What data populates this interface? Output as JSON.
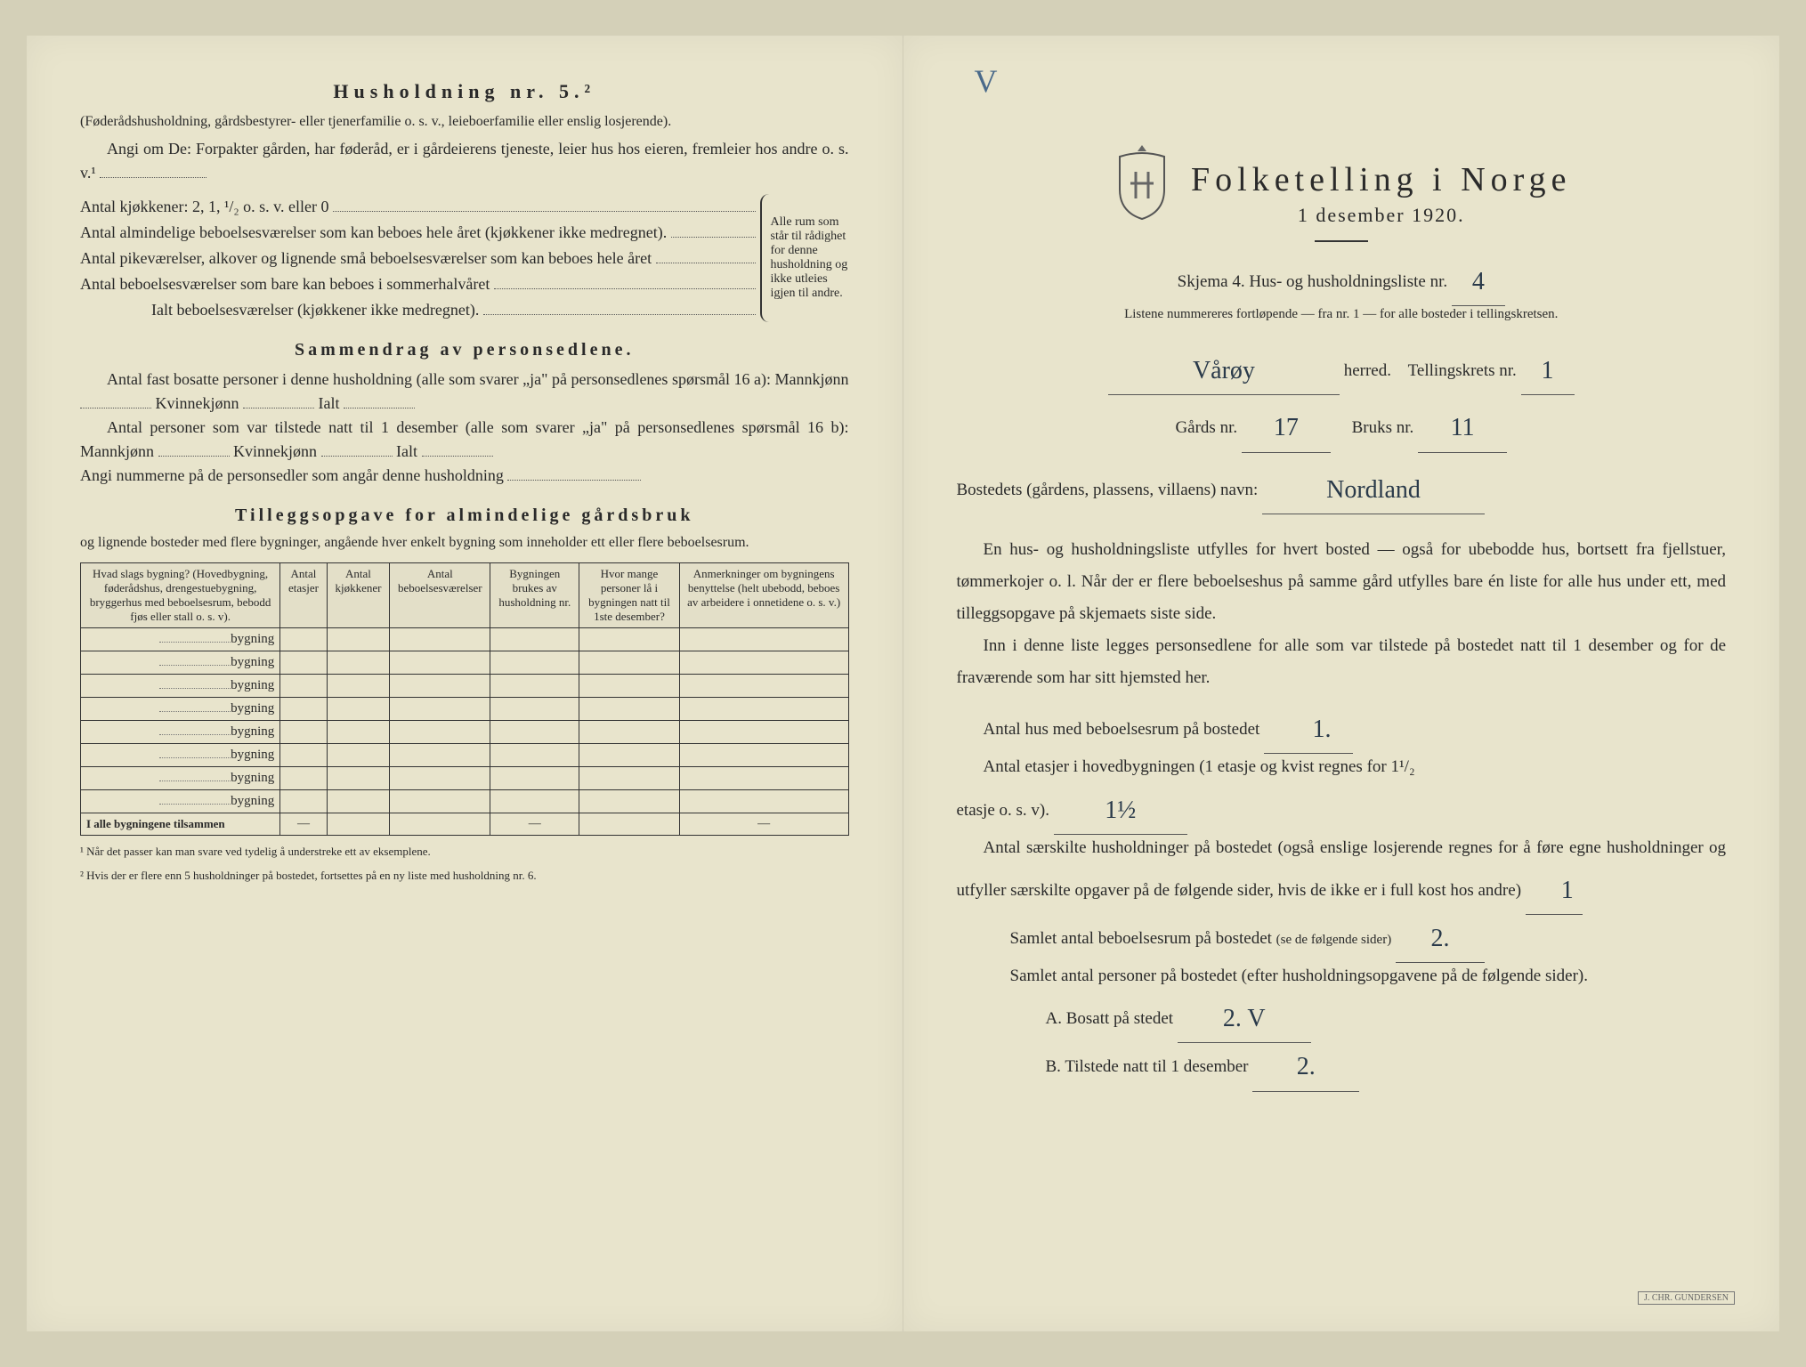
{
  "left": {
    "heading": "Husholdning nr. 5.²",
    "intro1": "(Føderådshusholdning, gårdsbestyrer- eller tjenerfamilie o. s. v., leieboerfamilie eller enslig losjerende).",
    "intro2": "Angi om De: Forpakter gården, har føderåd, er i gårdeierens tjeneste, leier hus hos eieren, fremleier hos andre o. s. v.¹",
    "kjokkener": "Antal kjøkkener: 2, 1, ¹/₂ o. s. v. eller 0",
    "alm1": "Antal almindelige beboelsesværelser som kan beboes hele året (kjøkkener ikke medregnet).",
    "pike": "Antal pikeværelser, alkover og lignende små beboelsesværelser som kan beboes hele året",
    "sommer": "Antal beboelsesværelser som bare kan beboes i sommerhalvåret",
    "ialt": "Ialt beboelsesværelser  (kjøkkener ikke medregnet).",
    "brace_text": "Alle rum som står til rådighet for denne husholdning og ikke utleies igjen til andre.",
    "sammendrag_heading": "Sammendrag av personsedlene.",
    "sammendrag_line1": "Antal fast bosatte personer i denne husholdning (alle som svarer „ja\" på personsedlenes spørsmål 16 a): Mannkjønn",
    "kvinne": "Kvinnekjønn",
    "ialt_label": "Ialt",
    "sammendrag_line2": "Antal personer som var tilstede natt til 1 desember (alle som svarer „ja\" på personsedlenes spørsmål 16 b): Mannkjønn",
    "angi": "Angi nummerne på de personsedler som angår denne husholdning",
    "tillegg_heading": "Tilleggsopgave for almindelige gårdsbruk",
    "tillegg_sub": "og lignende bosteder med flere bygninger, angående hver enkelt bygning som inneholder ett eller flere beboelsesrum.",
    "table": {
      "headers": [
        "Hvad slags bygning?\n(Hovedbygning, føderådshus, drengestuebygning, bryggerhus med beboelsesrum, bebodd fjøs eller stall o. s. v).",
        "Antal etasjer",
        "Antal kjøkkener",
        "Antal beboelsesværelser",
        "Bygningen brukes av husholdning nr.",
        "Hvor mange personer lå i bygningen natt til 1ste desember?",
        "Anmerkninger om bygningens benyttelse (helt ubebodd, beboes av arbeidere i onnetidene o. s. v.)"
      ],
      "row_label": "bygning",
      "row_count": 8,
      "total_label": "I alle bygningene tilsammen"
    },
    "footnote1": "¹ Når det passer kan man svare ved tydelig å understreke ett av eksemplene.",
    "footnote2": "² Hvis der er flere enn 5 husholdninger på bostedet, fortsettes på en ny liste med husholdning nr. 6."
  },
  "right": {
    "checkmark": "V",
    "title": "Folketelling i Norge",
    "subtitle": "1 desember 1920.",
    "skjema_label": "Skjema 4.   Hus- og husholdningsliste nr.",
    "skjema_value": "4",
    "listene": "Listene nummereres fortløpende — fra nr. 1 — for alle bosteder i tellingskretsen.",
    "herred_value": "Vårøy",
    "herred_label": "herred.",
    "tellingskrets_label": "Tellingskrets nr.",
    "tellingskrets_value": "1",
    "gards_label": "Gårds nr.",
    "gards_value": "17",
    "bruks_label": "Bruks nr.",
    "bruks_value": "11",
    "bostedets_label": "Bostedets (gårdens, plassens, villaens) navn:",
    "bostedets_value": "Nordland",
    "para1": "En hus- og husholdningsliste utfylles for hvert bosted — også for ubebodde hus, bortsett fra fjellstuer, tømmerkojer o. l.  Når der er flere beboelseshus på samme gård utfylles bare én liste for alle hus under ett, med tilleggsopgave på skjemaets siste side.",
    "para2": "Inn i denne liste legges personsedlene for alle som var tilstede på bostedet natt til 1 desember og for de fraværende som har sitt hjemsted her.",
    "antal_hus_label": "Antal hus med beboelsesrum på bostedet",
    "antal_hus_value": "1.",
    "etasjer_label_a": "Antal etasjer i hovedbygningen (1 etasje og kvist regnes for 1¹/₂",
    "etasjer_label_b": "etasje o. s. v).",
    "etasjer_value": "1½",
    "saerskilte": "Antal særskilte husholdninger på bostedet (også enslige losjerende regnes for å føre egne husholdninger og utfyller særskilte opgaver på de følgende sider, hvis de ikke er i full kost hos andre)",
    "saerskilte_value": "1",
    "samlet_rum_label": "Samlet antal beboelsesrum på bostedet",
    "samlet_rum_note": "(se de følgende sider)",
    "samlet_rum_value": "2.",
    "samlet_personer": "Samlet antal personer på bostedet (efter husholdningsopgavene på de følgende sider).",
    "bosatt_label": "A.  Bosatt på stedet",
    "bosatt_value": "2. V",
    "tilstede_label": "B.  Tilstede natt til 1 desember",
    "tilstede_value": "2.",
    "footer_mark": "J. CHR. GUNDERSEN"
  }
}
